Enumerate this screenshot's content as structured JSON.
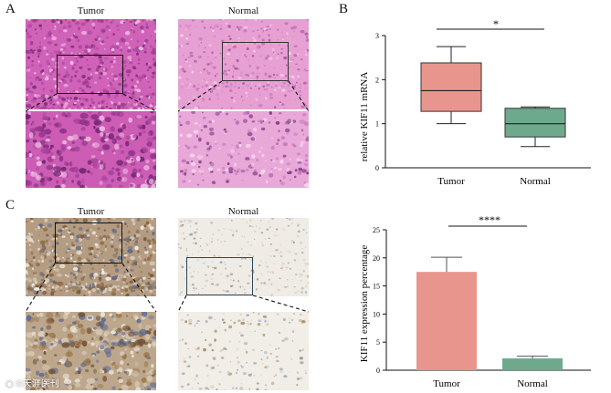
{
  "panels": {
    "a": {
      "letter": "A",
      "left_title": "Tumor",
      "right_title": "Normal"
    },
    "b": {
      "letter": "B"
    },
    "c": {
      "letter": "C",
      "left_title": "Tumor",
      "right_title": "Normal"
    }
  },
  "colors": {
    "tumor": "#e8968d",
    "normal": "#6ea98e",
    "he_dark": "#b8489e",
    "he_light": "#e9a8d8",
    "ihc_brown": "#9a7a52",
    "ihc_light": "#ece8e2"
  },
  "watermark": {
    "icon": "camera-icon",
    "text": "©天涯医刊"
  },
  "chart_data": [
    {
      "type": "box",
      "panel": "B",
      "categories": [
        "Tumor",
        "Normal"
      ],
      "ylabel": "relative KIF11 mRNA",
      "ylim": [
        0,
        3
      ],
      "yticks": [
        "0",
        "1",
        "2",
        "3"
      ],
      "significance": "*",
      "boxes": [
        {
          "name": "Tumor",
          "min": 1.0,
          "q1": 1.28,
          "median": 1.75,
          "q3": 2.38,
          "max": 2.75
        },
        {
          "name": "Normal",
          "min": 0.48,
          "q1": 0.7,
          "median": 1.0,
          "q3": 1.35,
          "max": 1.38
        }
      ]
    },
    {
      "type": "bar",
      "panel": "C",
      "categories": [
        "Tumor",
        "Normal"
      ],
      "ylabel": "KIF11 expression percentage",
      "ylim": [
        0,
        25
      ],
      "yticks": [
        "0",
        "5",
        "10",
        "15",
        "20",
        "25"
      ],
      "values": [
        17.5,
        2.1
      ],
      "errors": [
        2.6,
        0.4
      ],
      "significance": "****"
    }
  ]
}
